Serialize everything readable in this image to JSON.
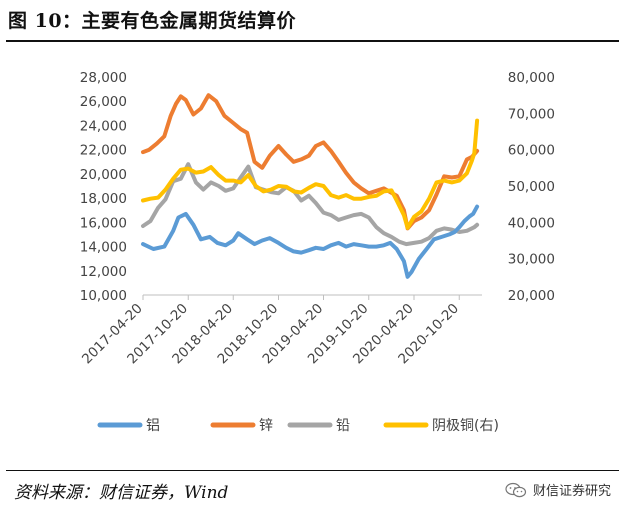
{
  "figure": {
    "title": "图 10：主要有色金属期货结算价",
    "source": "资料来源：财信证券，Wind",
    "watermark": "财信证券研究"
  },
  "chart_data": {
    "type": "line",
    "title": "",
    "xlabel": "",
    "ylabel": "",
    "y2label": "",
    "ylim": [
      10000,
      28000
    ],
    "y2lim": [
      20000,
      80000
    ],
    "yticks": [
      "10,000",
      "12,000",
      "14,000",
      "16,000",
      "18,000",
      "20,000",
      "22,000",
      "24,000",
      "26,000",
      "28,000"
    ],
    "y2ticks": [
      "20,000",
      "30,000",
      "40,000",
      "50,000",
      "60,000",
      "70,000",
      "80,000"
    ],
    "xlim": [
      "2017-04-20",
      "2021-01-20"
    ],
    "xticks": [
      "2017-04-20",
      "2017-10-20",
      "2018-04-20",
      "2018-10-20",
      "2019-04-20",
      "2019-10-20",
      "2020-04-20",
      "2020-10-20"
    ],
    "legend_position": "bottom",
    "series": [
      {
        "name": "铝",
        "axis": "left",
        "color": "#5b9bd5",
        "x": [
          "2017-04-20",
          "2017-06-01",
          "2017-07-15",
          "2017-08-20",
          "2017-09-10",
          "2017-10-10",
          "2017-11-10",
          "2017-12-10",
          "2018-01-15",
          "2018-02-15",
          "2018-03-20",
          "2018-04-20",
          "2018-05-10",
          "2018-06-15",
          "2018-07-15",
          "2018-08-15",
          "2018-09-15",
          "2018-10-20",
          "2018-11-20",
          "2018-12-20",
          "2019-01-20",
          "2019-02-20",
          "2019-03-20",
          "2019-04-20",
          "2019-05-20",
          "2019-06-20",
          "2019-07-20",
          "2019-08-20",
          "2019-09-20",
          "2019-10-20",
          "2019-11-20",
          "2019-12-20",
          "2020-01-15",
          "2020-02-10",
          "2020-03-10",
          "2020-03-25",
          "2020-04-10",
          "2020-05-10",
          "2020-06-10",
          "2020-07-10",
          "2020-08-10",
          "2020-09-10",
          "2020-10-01",
          "2020-10-20",
          "2020-11-10",
          "2020-12-01",
          "2020-12-15",
          "2020-12-31"
        ],
        "values": [
          14200,
          13800,
          14000,
          15300,
          16400,
          16700,
          15800,
          14600,
          14800,
          14300,
          14100,
          14500,
          15100,
          14600,
          14200,
          14500,
          14700,
          14300,
          13900,
          13600,
          13500,
          13700,
          13900,
          13800,
          14100,
          14300,
          14000,
          14200,
          14100,
          14000,
          14000,
          14100,
          14300,
          13800,
          12800,
          11500,
          11900,
          13000,
          13800,
          14600,
          14800,
          15000,
          15200,
          15600,
          16100,
          16500,
          16700,
          17300
        ]
      },
      {
        "name": "锌",
        "axis": "left",
        "color": "#ed7d31",
        "x": [
          "2017-04-20",
          "2017-05-15",
          "2017-06-15",
          "2017-07-15",
          "2017-08-10",
          "2017-09-01",
          "2017-09-20",
          "2017-10-10",
          "2017-11-10",
          "2017-12-10",
          "2018-01-10",
          "2018-02-10",
          "2018-03-15",
          "2018-04-20",
          "2018-05-20",
          "2018-06-15",
          "2018-07-15",
          "2018-08-15",
          "2018-09-15",
          "2018-10-20",
          "2018-11-20",
          "2018-12-20",
          "2019-01-20",
          "2019-02-20",
          "2019-03-20",
          "2019-04-20",
          "2019-05-20",
          "2019-06-20",
          "2019-07-20",
          "2019-08-20",
          "2019-09-20",
          "2019-10-20",
          "2019-11-20",
          "2019-12-20",
          "2020-01-15",
          "2020-02-10",
          "2020-03-10",
          "2020-03-25",
          "2020-04-20",
          "2020-05-20",
          "2020-06-20",
          "2020-07-20",
          "2020-08-20",
          "2020-09-20",
          "2020-10-20",
          "2020-11-20",
          "2020-12-10",
          "2020-12-31"
        ],
        "values": [
          21800,
          22000,
          22500,
          23100,
          24800,
          25800,
          26400,
          26100,
          24900,
          25400,
          26500,
          26000,
          24800,
          24200,
          23700,
          23400,
          21000,
          20500,
          21500,
          22300,
          21600,
          21000,
          21200,
          21500,
          22300,
          22600,
          21900,
          21000,
          20100,
          19300,
          18800,
          18400,
          18600,
          18800,
          18500,
          18200,
          17000,
          15500,
          16100,
          16400,
          17000,
          18300,
          19800,
          19700,
          19800,
          21200,
          21400,
          21900
        ]
      },
      {
        "name": "铅",
        "axis": "left",
        "color": "#a5a5a5",
        "x": [
          "2017-04-20",
          "2017-05-20",
          "2017-06-20",
          "2017-07-20",
          "2017-08-20",
          "2017-09-20",
          "2017-10-20",
          "2017-11-20",
          "2017-12-20",
          "2018-01-20",
          "2018-02-20",
          "2018-03-20",
          "2018-04-20",
          "2018-05-20",
          "2018-06-20",
          "2018-07-20",
          "2018-08-20",
          "2018-09-20",
          "2018-10-20",
          "2018-11-20",
          "2018-12-20",
          "2019-01-20",
          "2019-02-20",
          "2019-03-20",
          "2019-04-20",
          "2019-05-20",
          "2019-06-20",
          "2019-07-20",
          "2019-08-20",
          "2019-09-20",
          "2019-10-20",
          "2019-11-20",
          "2019-12-20",
          "2020-01-20",
          "2020-02-20",
          "2020-03-20",
          "2020-04-20",
          "2020-05-20",
          "2020-06-20",
          "2020-07-20",
          "2020-08-20",
          "2020-09-20",
          "2020-10-20",
          "2020-11-20",
          "2020-12-20",
          "2020-12-31"
        ],
        "values": [
          15700,
          16100,
          17200,
          17900,
          19400,
          19600,
          20800,
          19300,
          18700,
          19300,
          19000,
          18600,
          18800,
          19700,
          20600,
          18900,
          18700,
          18500,
          18400,
          18900,
          18600,
          17800,
          18200,
          17600,
          16800,
          16600,
          16200,
          16400,
          16600,
          16700,
          16400,
          15600,
          15100,
          14800,
          14400,
          14200,
          14300,
          14400,
          14700,
          15300,
          15500,
          15400,
          15200,
          15300,
          15600,
          15800
        ]
      },
      {
        "name": "阴极铜(右)",
        "axis": "right",
        "color": "#ffc000",
        "x": [
          "2017-04-20",
          "2017-05-20",
          "2017-06-20",
          "2017-07-20",
          "2017-08-20",
          "2017-09-20",
          "2017-10-20",
          "2017-11-20",
          "2017-12-20",
          "2018-01-20",
          "2018-02-20",
          "2018-03-20",
          "2018-04-20",
          "2018-05-20",
          "2018-06-20",
          "2018-07-20",
          "2018-08-20",
          "2018-09-20",
          "2018-10-20",
          "2018-11-20",
          "2018-12-20",
          "2019-01-20",
          "2019-02-20",
          "2019-03-20",
          "2019-04-20",
          "2019-05-20",
          "2019-06-20",
          "2019-07-20",
          "2019-08-20",
          "2019-09-20",
          "2019-10-20",
          "2019-11-20",
          "2019-12-20",
          "2020-01-20",
          "2020-02-10",
          "2020-03-10",
          "2020-03-25",
          "2020-04-20",
          "2020-05-20",
          "2020-06-20",
          "2020-07-20",
          "2020-08-20",
          "2020-09-20",
          "2020-10-20",
          "2020-11-20",
          "2020-12-10",
          "2020-12-20",
          "2020-12-31"
        ],
        "values": [
          46000,
          46500,
          46800,
          49000,
          52000,
          54500,
          54800,
          53700,
          54000,
          55200,
          53000,
          51500,
          51500,
          51000,
          53000,
          50000,
          48500,
          49000,
          50000,
          49800,
          48500,
          48200,
          49500,
          50500,
          50000,
          47500,
          46800,
          47500,
          46500,
          46500,
          47000,
          47300,
          48500,
          48800,
          46000,
          42000,
          38500,
          41500,
          43000,
          46500,
          51000,
          51500,
          51000,
          51500,
          53500,
          57000,
          59000,
          68000
        ]
      }
    ]
  }
}
